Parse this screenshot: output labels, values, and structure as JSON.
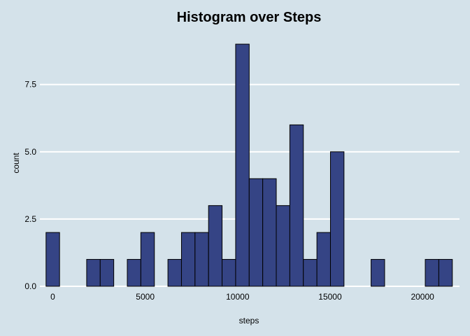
{
  "chart_data": {
    "type": "bar",
    "title": "Histogram over Steps",
    "xlabel": "steps",
    "ylabel": "count",
    "xlim": [
      -700,
      22000
    ],
    "ylim": [
      0,
      9.6
    ],
    "x_ticks": [
      0,
      5000,
      10000,
      15000,
      20000
    ],
    "x_tick_labels": [
      "0",
      "5000",
      "10000",
      "15000",
      "20000"
    ],
    "y_ticks": [
      0,
      2.5,
      5,
      7.5
    ],
    "y_tick_labels": [
      "0.0",
      "2.5",
      "5.0",
      "7.5"
    ],
    "grid": "horizontal",
    "bin_width": 732.6,
    "bin_centers": [
      0,
      732.6,
      1465.3,
      2197.9,
      2930.5,
      3663.2,
      4395.8,
      5128.4,
      5861.1,
      6593.7,
      7326.3,
      8059.0,
      8791.6,
      9524.2,
      10256.9,
      10989.5,
      11722.1,
      12454.8,
      13187.4,
      13920.0,
      14652.6,
      15385.3,
      16117.9,
      16850.5,
      17583.2,
      18315.8,
      19048.4,
      19781.1,
      20513.7,
      21246.3
    ],
    "counts": [
      2,
      0,
      0,
      1,
      1,
      0,
      1,
      2,
      0,
      1,
      2,
      2,
      3,
      1,
      9,
      4,
      4,
      3,
      6,
      1,
      2,
      5,
      0,
      0,
      1,
      0,
      0,
      0,
      1,
      1
    ],
    "colors": {
      "background": "#d4e2ea",
      "bar_fill": "#354485",
      "bar_outline": "#000000",
      "grid": "#ffffff"
    }
  }
}
